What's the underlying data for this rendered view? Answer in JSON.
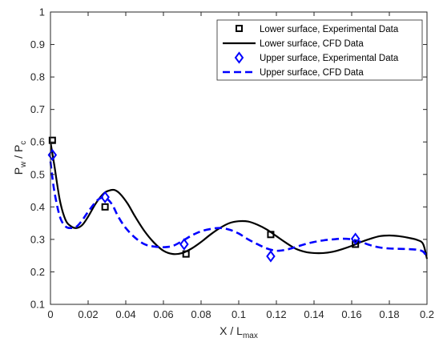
{
  "chart_data": {
    "type": "line",
    "title": "",
    "xlabel": {
      "base": "X / L",
      "sub": "max"
    },
    "ylabel": {
      "base": "P",
      "sub1": "w",
      "mid": " / P",
      "sub2": "c"
    },
    "xlim": [
      0,
      0.2
    ],
    "ylim": [
      0.1,
      1
    ],
    "xticks": [
      "0",
      "0.02",
      "0.04",
      "0.06",
      "0.08",
      "0.1",
      "0.12",
      "0.14",
      "0.16",
      "0.18",
      "0.2"
    ],
    "yticks": [
      "0.1",
      "0.2",
      "0.3",
      "0.4",
      "0.5",
      "0.6",
      "0.7",
      "0.8",
      "0.9",
      "1"
    ],
    "grid": false,
    "legend_position": "top-right",
    "series": [
      {
        "name": "Lower surface, Experimental Data",
        "kind": "scatter",
        "marker": "square",
        "color": "#000000",
        "x": [
          0.001,
          0.029,
          0.072,
          0.117,
          0.162
        ],
        "y": [
          0.605,
          0.4,
          0.255,
          0.315,
          0.285
        ]
      },
      {
        "name": "Lower surface, CFD Data",
        "kind": "line",
        "style": "solid",
        "color": "#000000",
        "x": [
          0.0,
          0.002,
          0.005,
          0.008,
          0.011,
          0.014,
          0.017,
          0.02,
          0.024,
          0.028,
          0.031,
          0.034,
          0.037,
          0.041,
          0.045,
          0.05,
          0.055,
          0.06,
          0.065,
          0.07,
          0.075,
          0.08,
          0.085,
          0.09,
          0.095,
          0.1,
          0.105,
          0.11,
          0.115,
          0.12,
          0.125,
          0.13,
          0.135,
          0.14,
          0.145,
          0.15,
          0.155,
          0.16,
          0.165,
          0.17,
          0.175,
          0.18,
          0.185,
          0.19,
          0.195,
          0.198,
          0.2
        ],
        "y": [
          0.6,
          0.53,
          0.42,
          0.36,
          0.34,
          0.335,
          0.345,
          0.37,
          0.41,
          0.44,
          0.45,
          0.452,
          0.44,
          0.41,
          0.37,
          0.325,
          0.29,
          0.265,
          0.255,
          0.258,
          0.272,
          0.292,
          0.315,
          0.335,
          0.35,
          0.356,
          0.355,
          0.345,
          0.33,
          0.31,
          0.29,
          0.272,
          0.262,
          0.258,
          0.258,
          0.262,
          0.27,
          0.28,
          0.292,
          0.302,
          0.31,
          0.312,
          0.31,
          0.305,
          0.298,
          0.285,
          0.24
        ]
      },
      {
        "name": "Upper surface, Experimental Data",
        "kind": "scatter",
        "marker": "diamond",
        "color": "#0000ff",
        "x": [
          0.001,
          0.029,
          0.071,
          0.117,
          0.162
        ],
        "y": [
          0.56,
          0.43,
          0.285,
          0.248,
          0.302
        ]
      },
      {
        "name": "Upper surface, CFD Data",
        "kind": "line",
        "style": "dashed",
        "color": "#0000ff",
        "x": [
          0.0,
          0.002,
          0.005,
          0.008,
          0.011,
          0.014,
          0.017,
          0.02,
          0.024,
          0.027,
          0.03,
          0.033,
          0.036,
          0.04,
          0.045,
          0.05,
          0.055,
          0.06,
          0.065,
          0.07,
          0.075,
          0.08,
          0.085,
          0.09,
          0.095,
          0.1,
          0.105,
          0.11,
          0.115,
          0.12,
          0.125,
          0.13,
          0.135,
          0.14,
          0.145,
          0.15,
          0.155,
          0.16,
          0.165,
          0.17,
          0.175,
          0.18,
          0.185,
          0.19,
          0.195,
          0.198,
          0.2
        ],
        "y": [
          0.54,
          0.45,
          0.37,
          0.34,
          0.335,
          0.34,
          0.36,
          0.385,
          0.415,
          0.428,
          0.425,
          0.405,
          0.37,
          0.335,
          0.305,
          0.285,
          0.278,
          0.276,
          0.28,
          0.295,
          0.312,
          0.325,
          0.332,
          0.335,
          0.33,
          0.318,
          0.3,
          0.285,
          0.272,
          0.265,
          0.268,
          0.276,
          0.285,
          0.292,
          0.297,
          0.3,
          0.302,
          0.3,
          0.292,
          0.282,
          0.275,
          0.272,
          0.271,
          0.27,
          0.268,
          0.262,
          0.245
        ]
      }
    ]
  }
}
